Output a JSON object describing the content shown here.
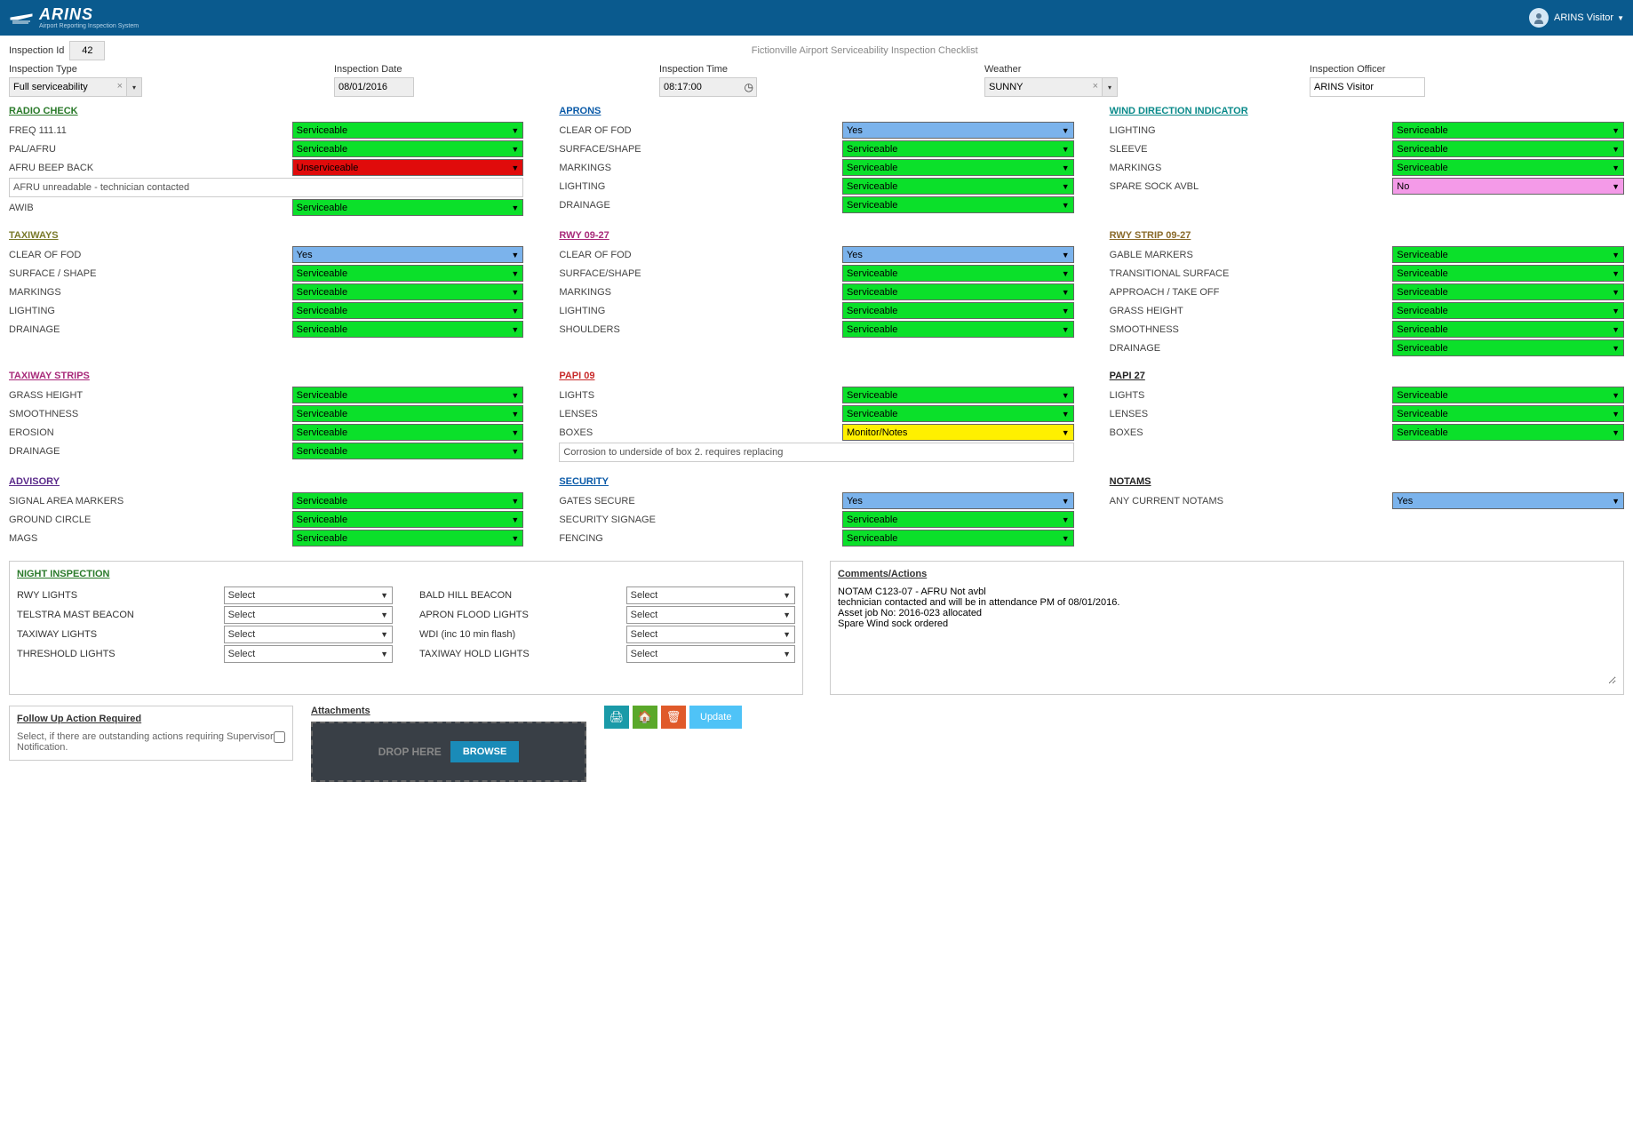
{
  "brand": {
    "name": "ARINS",
    "subtitle": "Airport Reporting Inspection System"
  },
  "user": {
    "name": "ARINS Visitor"
  },
  "page_title": "Fictionville Airport Serviceability Inspection Checklist",
  "inspection": {
    "id_label": "Inspection Id",
    "id": "42",
    "type_label": "Inspection Type",
    "type": "Full serviceability",
    "date_label": "Inspection Date",
    "date": "08/01/2016",
    "time_label": "Inspection Time",
    "time": "08:17:00",
    "weather_label": "Weather",
    "weather": "SUNNY",
    "officer_label": "Inspection Officer",
    "officer": "ARINS Visitor"
  },
  "status_colors": {
    "Serviceable": {
      "bg": "#0be02a",
      "fg": "#000"
    },
    "Unserviceable": {
      "bg": "#e00b0b",
      "fg": "#000"
    },
    "Yes": {
      "bg": "#7bb3ec",
      "fg": "#000"
    },
    "No": {
      "bg": "#f49ae8",
      "fg": "#000"
    },
    "Monitor/Notes": {
      "bg": "#fff000",
      "fg": "#000"
    }
  },
  "section_title_colors": {
    "RADIO CHECK": "#2a7a2a",
    "APRONS": "#0a5aa8",
    "WIND DIRECTION INDICATOR": "#0a8a8a",
    "TAXIWAYS": "#7a7a2a",
    "RWY 09-27": "#a82a7a",
    "RWY STRIP 09-27": "#8a6a2a",
    "TAXIWAY STRIPS": "#a82a7a",
    "PAPI 09": "#c82a2a",
    "PAPI 27": "#222",
    "ADVISORY": "#5a2a8a",
    "SECURITY": "#0a5aa8",
    "NOTAMS": "#222",
    "NIGHT INSPECTION": "#2a7a2a",
    "Comments/Actions": "#222",
    "Follow Up Action Required": "#222",
    "Attachments": "#222"
  },
  "radio_check_note": "AFRU unreadable - technician contacted",
  "papi09_note": "Corrosion to underside of box 2. requires replacing",
  "sections_row1": [
    {
      "title": "RADIO CHECK",
      "items": [
        {
          "label": "FREQ 111.11",
          "status": "Serviceable"
        },
        {
          "label": "PAL/AFRU",
          "status": "Serviceable"
        },
        {
          "label": "AFRU BEEP BACK",
          "status": "Unserviceable"
        },
        {
          "note": true
        },
        {
          "label": "AWIB",
          "status": "Serviceable"
        }
      ]
    },
    {
      "title": "APRONS",
      "items": [
        {
          "label": "CLEAR OF FOD",
          "status": "Yes"
        },
        {
          "label": "SURFACE/SHAPE",
          "status": "Serviceable"
        },
        {
          "label": "MARKINGS",
          "status": "Serviceable"
        },
        {
          "label": "LIGHTING",
          "status": "Serviceable"
        },
        {
          "label": "DRAINAGE",
          "status": "Serviceable"
        }
      ]
    },
    {
      "title": "WIND DIRECTION INDICATOR",
      "items": [
        {
          "label": "LIGHTING",
          "status": "Serviceable"
        },
        {
          "label": "SLEEVE",
          "status": "Serviceable"
        },
        {
          "label": "MARKINGS",
          "status": "Serviceable"
        },
        {
          "label": "SPARE SOCK AVBL",
          "status": "No"
        }
      ]
    }
  ],
  "sections_row2": [
    {
      "title": "TAXIWAYS",
      "items": [
        {
          "label": "CLEAR OF FOD",
          "status": "Yes"
        },
        {
          "label": "SURFACE / SHAPE",
          "status": "Serviceable"
        },
        {
          "label": "MARKINGS",
          "status": "Serviceable"
        },
        {
          "label": "LIGHTING",
          "status": "Serviceable"
        },
        {
          "label": "DRAINAGE",
          "status": "Serviceable"
        }
      ]
    },
    {
      "title": "RWY 09-27",
      "items": [
        {
          "label": "CLEAR OF FOD",
          "status": "Yes"
        },
        {
          "label": "SURFACE/SHAPE",
          "status": "Serviceable"
        },
        {
          "label": "MARKINGS",
          "status": "Serviceable"
        },
        {
          "label": "LIGHTING",
          "status": "Serviceable"
        },
        {
          "label": "SHOULDERS",
          "status": "Serviceable"
        }
      ]
    },
    {
      "title": "RWY STRIP 09-27",
      "items": [
        {
          "label": "GABLE MARKERS",
          "status": "Serviceable"
        },
        {
          "label": "TRANSITIONAL SURFACE",
          "status": "Serviceable"
        },
        {
          "label": "APPROACH / TAKE OFF",
          "status": "Serviceable"
        },
        {
          "label": "GRASS HEIGHT",
          "status": "Serviceable"
        },
        {
          "label": "SMOOTHNESS",
          "status": "Serviceable"
        },
        {
          "label": "DRAINAGE",
          "status": "Serviceable"
        }
      ]
    }
  ],
  "sections_row3": [
    {
      "title": "TAXIWAY STRIPS",
      "items": [
        {
          "label": "GRASS HEIGHT",
          "status": "Serviceable"
        },
        {
          "label": "SMOOTHNESS",
          "status": "Serviceable"
        },
        {
          "label": "EROSION",
          "status": "Serviceable"
        },
        {
          "label": "DRAINAGE",
          "status": "Serviceable"
        }
      ]
    },
    {
      "title": "PAPI 09",
      "items": [
        {
          "label": "LIGHTS",
          "status": "Serviceable"
        },
        {
          "label": "LENSES",
          "status": "Serviceable"
        },
        {
          "label": "BOXES",
          "status": "Monitor/Notes"
        },
        {
          "note": true
        }
      ]
    },
    {
      "title": "PAPI 27",
      "items": [
        {
          "label": "LIGHTS",
          "status": "Serviceable"
        },
        {
          "label": "LENSES",
          "status": "Serviceable"
        },
        {
          "label": "BOXES",
          "status": "Serviceable"
        }
      ]
    }
  ],
  "sections_row4": [
    {
      "title": "ADVISORY",
      "items": [
        {
          "label": "SIGNAL AREA MARKERS",
          "status": "Serviceable"
        },
        {
          "label": "GROUND CIRCLE",
          "status": "Serviceable"
        },
        {
          "label": "MAGS",
          "status": "Serviceable"
        }
      ]
    },
    {
      "title": "SECURITY",
      "items": [
        {
          "label": "GATES SECURE",
          "status": "Yes"
        },
        {
          "label": "SECURITY SIGNAGE",
          "status": "Serviceable"
        },
        {
          "label": "FENCING",
          "status": "Serviceable"
        }
      ]
    },
    {
      "title": "NOTAMS",
      "items": [
        {
          "label": "ANY CURRENT NOTAMS",
          "status": "Yes"
        }
      ]
    }
  ],
  "night": {
    "title": "NIGHT INSPECTION",
    "left": [
      {
        "label": "RWY LIGHTS",
        "value": "Select"
      },
      {
        "label": "TELSTRA MAST BEACON",
        "value": "Select"
      },
      {
        "label": "TAXIWAY LIGHTS",
        "value": "Select"
      },
      {
        "label": "THRESHOLD LIGHTS",
        "value": "Select"
      }
    ],
    "right": [
      {
        "label": "BALD HILL BEACON",
        "value": "Select"
      },
      {
        "label": "APRON FLOOD LIGHTS",
        "value": "Select"
      },
      {
        "label": "WDI (inc 10 min flash)",
        "value": "Select"
      },
      {
        "label": "TAXIWAY HOLD LIGHTS",
        "value": "Select"
      }
    ]
  },
  "comments": {
    "title": "Comments/Actions",
    "text": "NOTAM C123-07 - AFRU Not avbl\ntechnician contacted and will be in attendance PM of 08/01/2016.\nAsset job No: 2016-023 allocated\nSpare Wind sock ordered"
  },
  "followup": {
    "title": "Follow Up Action Required",
    "text": "Select, if there are outstanding actions requiring Supervisor Notification."
  },
  "attachments": {
    "title": "Attachments",
    "drop_text": "DROP HERE",
    "browse": "BROWSE"
  },
  "actions": {
    "print_color": "#1a9aa8",
    "home_color": "#5aa82a",
    "delete_color": "#e05a2a",
    "update_label": "Update",
    "update_color": "#4fc3f7"
  }
}
